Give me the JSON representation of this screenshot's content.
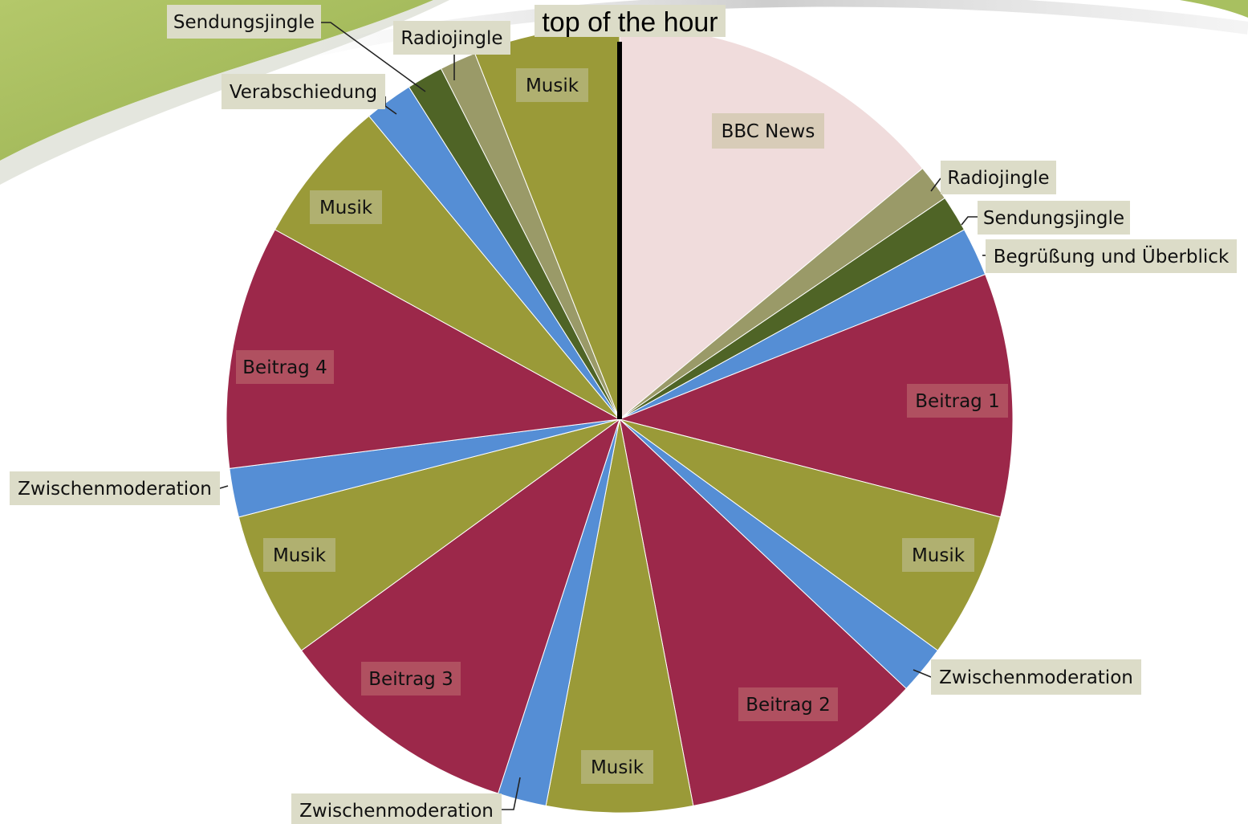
{
  "chart_data": {
    "type": "pie",
    "title": "top of the hour",
    "start": "12 o'clock",
    "direction": "clockwise",
    "slices": [
      {
        "label": "BBC News",
        "value": 14,
        "color": "#f0dcdc",
        "label_bg": "#d8ccb8"
      },
      {
        "label": "Radiojingle",
        "value": 1.5,
        "color": "#9a9a68",
        "label_bg": "#dcdcc8"
      },
      {
        "label": "Sendungsjingle",
        "value": 1.5,
        "color": "#4f6426",
        "label_bg": "#dcdcc8"
      },
      {
        "label": "Begrüßung und Überblick",
        "value": 2,
        "color": "#558ed5",
        "label_bg": "#dcdcc8"
      },
      {
        "label": "Beitrag 1",
        "value": 10,
        "color": "#9c284a",
        "label_bg": "#b05060"
      },
      {
        "label": "Musik",
        "value": 6,
        "color": "#9a9a38",
        "label_bg": "#b0b070"
      },
      {
        "label": "Zwischenmoderation",
        "value": 2,
        "color": "#558ed5",
        "label_bg": "#dcdcc8"
      },
      {
        "label": "Beitrag 2",
        "value": 10,
        "color": "#9c284a",
        "label_bg": "#b05060"
      },
      {
        "label": "Musik",
        "value": 6,
        "color": "#9a9a38",
        "label_bg": "#b0b070"
      },
      {
        "label": "Zwischenmoderation",
        "value": 2,
        "color": "#558ed5",
        "label_bg": "#dcdcc8"
      },
      {
        "label": "Beitrag 3",
        "value": 10,
        "color": "#9c284a",
        "label_bg": "#b05060"
      },
      {
        "label": "Musik",
        "value": 6,
        "color": "#9a9a38",
        "label_bg": "#b0b070"
      },
      {
        "label": "Zwischenmoderation",
        "value": 2,
        "color": "#558ed5",
        "label_bg": "#dcdcc8"
      },
      {
        "label": "Beitrag 4",
        "value": 10,
        "color": "#9c284a",
        "label_bg": "#b05060"
      },
      {
        "label": "Musik",
        "value": 6,
        "color": "#9a9a38",
        "label_bg": "#b0b070"
      },
      {
        "label": "Verabschiedung",
        "value": 2,
        "color": "#558ed5",
        "label_bg": "#dcdcc8"
      },
      {
        "label": "Sendungsjingle",
        "value": 1.5,
        "color": "#4f6426",
        "label_bg": "#dcdcc8"
      },
      {
        "label": "Radiojingle",
        "value": 1.5,
        "color": "#9a9a68",
        "label_bg": "#dcdcc8"
      },
      {
        "label": "Musik",
        "value": 6,
        "color": "#9a9a38",
        "label_bg": "#b0b070"
      }
    ]
  },
  "colors": {
    "background_swoosh": "#a8c060",
    "title_bg": "#dcdcc8",
    "hour_marker": "#000000"
  }
}
